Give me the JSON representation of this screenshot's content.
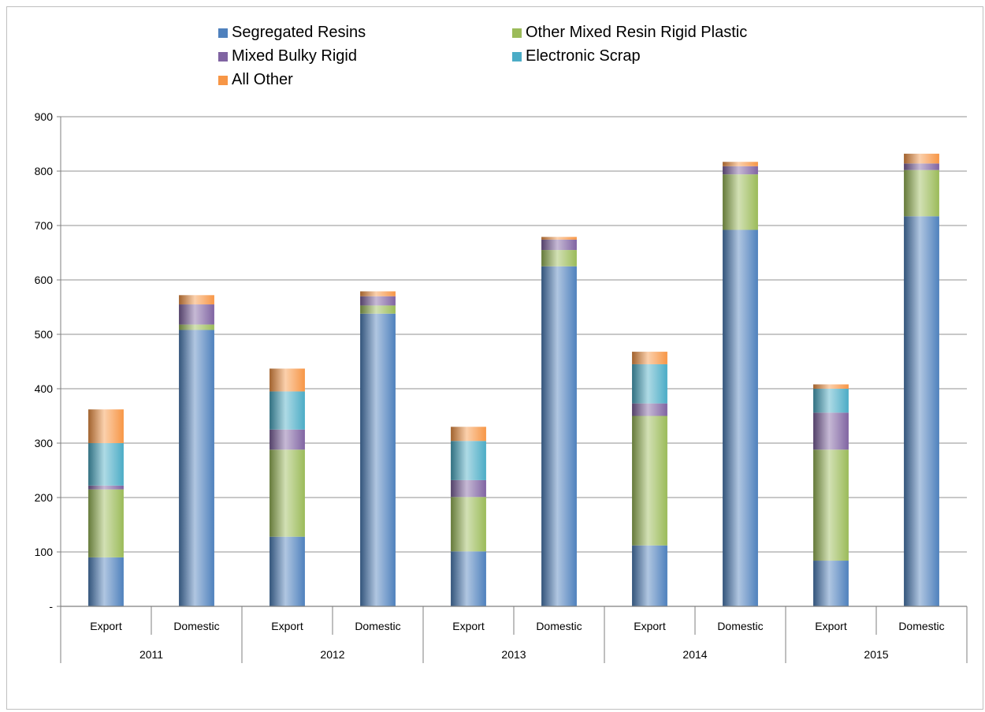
{
  "chart_data": {
    "type": "bar",
    "stacked": true,
    "title": "",
    "xlabel": "",
    "ylabel": "",
    "ylim": [
      0,
      900
    ],
    "yticks": [
      0,
      100,
      200,
      300,
      400,
      500,
      600,
      700,
      800,
      900
    ],
    "ytick_labels": [
      "-",
      "100",
      "200",
      "300",
      "400",
      "500",
      "600",
      "700",
      "800",
      "900"
    ],
    "grid": true,
    "legend_position": "top",
    "groups": [
      {
        "label": "2011",
        "categories": [
          "Export",
          "Domestic"
        ]
      },
      {
        "label": "2012",
        "categories": [
          "Export",
          "Domestic"
        ]
      },
      {
        "label": "2013",
        "categories": [
          "Export",
          "Domestic"
        ]
      },
      {
        "label": "2014",
        "categories": [
          "Export",
          "Domestic"
        ]
      },
      {
        "label": "2015",
        "categories": [
          "Export",
          "Domestic"
        ]
      }
    ],
    "series": [
      {
        "name": "Segregated Resins",
        "color": "#4f81bd",
        "values": [
          90,
          508,
          128,
          538,
          101,
          625,
          112,
          692,
          84,
          717
        ]
      },
      {
        "name": "Other Mixed Resin Rigid Plastic",
        "color": "#9bbb59",
        "values": [
          125,
          10,
          160,
          15,
          100,
          30,
          238,
          102,
          204,
          85
        ]
      },
      {
        "name": "Mixed Bulky Rigid",
        "color": "#8064a2",
        "values": [
          7,
          37,
          37,
          17,
          31,
          19,
          23,
          15,
          68,
          12
        ]
      },
      {
        "name": "Electronic Scrap",
        "color": "#4bacc6",
        "values": [
          78,
          0,
          70,
          0,
          72,
          0,
          72,
          0,
          44,
          0
        ]
      },
      {
        "name": "All Other",
        "color": "#f79646",
        "values": [
          62,
          17,
          42,
          9,
          26,
          5,
          23,
          8,
          8,
          18
        ]
      }
    ]
  }
}
